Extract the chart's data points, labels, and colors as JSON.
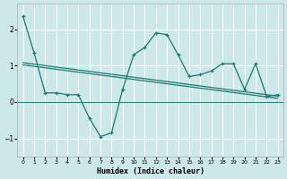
{
  "xlabel": "Humidex (Indice chaleur)",
  "bg_color": "#cce8e8",
  "grid_color": "#ffffff",
  "line_color": "#1a7a6e",
  "xlim": [
    -0.5,
    23.5
  ],
  "ylim": [
    -1.5,
    2.7
  ],
  "yticks": [
    -1,
    0,
    1,
    2
  ],
  "xticks": [
    0,
    1,
    2,
    3,
    4,
    5,
    6,
    7,
    8,
    9,
    10,
    11,
    12,
    13,
    14,
    15,
    16,
    17,
    18,
    19,
    20,
    21,
    22,
    23
  ],
  "line1_x": [
    0,
    1,
    2,
    3,
    4,
    5,
    6,
    7,
    8,
    9,
    10,
    11,
    12,
    13,
    14,
    15,
    16,
    17,
    18,
    19,
    20,
    21,
    22,
    23
  ],
  "line1_y": [
    2.35,
    1.35,
    0.25,
    0.25,
    0.2,
    0.2,
    -0.45,
    -0.95,
    -0.85,
    0.35,
    1.3,
    1.5,
    1.9,
    1.85,
    1.3,
    0.7,
    0.75,
    0.85,
    1.05,
    1.05,
    0.35,
    1.05,
    0.15,
    0.2
  ],
  "line2_x": [
    0,
    1,
    2,
    3,
    4,
    5,
    6,
    7,
    8,
    9,
    10,
    11,
    12,
    13,
    14,
    15,
    16,
    17,
    18,
    19,
    20,
    21,
    22,
    23
  ],
  "line2_y": [
    1.08,
    1.04,
    1.0,
    0.96,
    0.92,
    0.88,
    0.84,
    0.8,
    0.76,
    0.72,
    0.68,
    0.64,
    0.6,
    0.56,
    0.52,
    0.48,
    0.44,
    0.4,
    0.36,
    0.32,
    0.28,
    0.24,
    0.2,
    0.16
  ],
  "line3_x": [
    0,
    1,
    2,
    3,
    4,
    5,
    6,
    7,
    8,
    9,
    10,
    11,
    12,
    13,
    14,
    15,
    16,
    17,
    18,
    19,
    20,
    21,
    22,
    23
  ],
  "line3_y": [
    1.02,
    0.98,
    0.94,
    0.9,
    0.86,
    0.82,
    0.78,
    0.74,
    0.7,
    0.66,
    0.62,
    0.58,
    0.54,
    0.5,
    0.46,
    0.42,
    0.38,
    0.34,
    0.3,
    0.26,
    0.22,
    0.18,
    0.14,
    0.1
  ]
}
